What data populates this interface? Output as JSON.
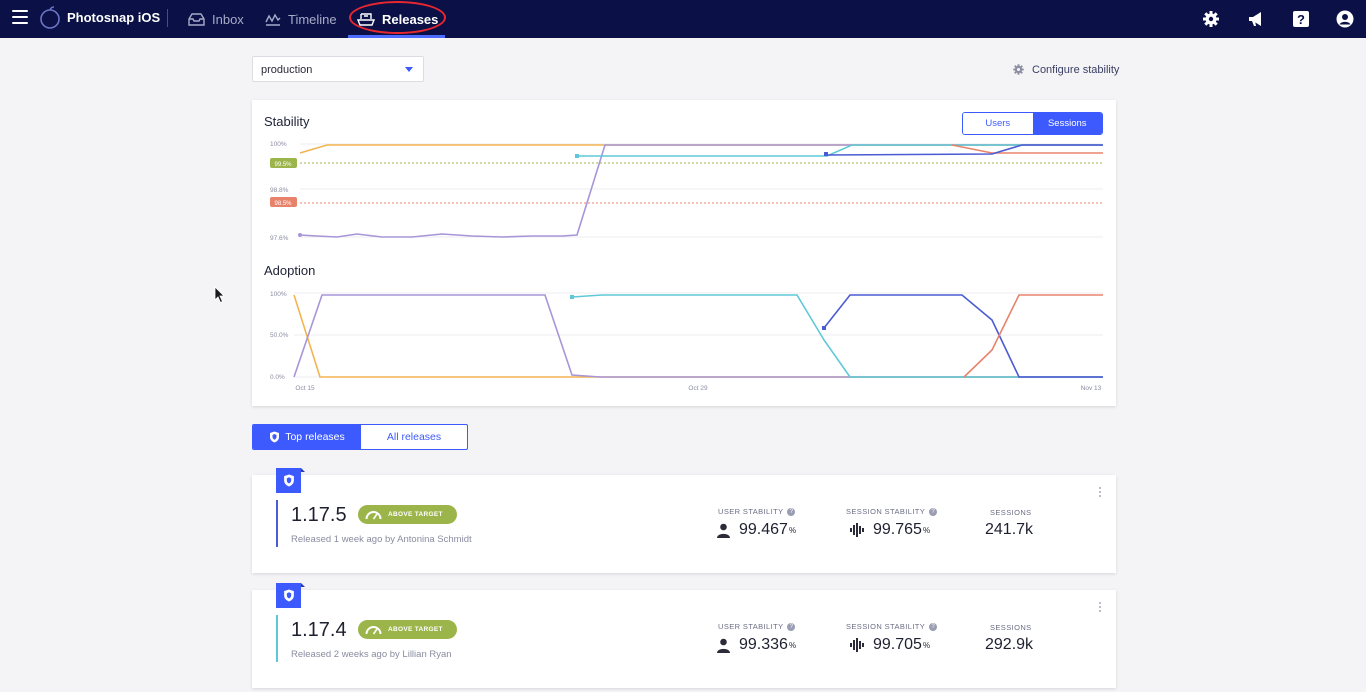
{
  "nav": {
    "app_name": "Photosnap iOS",
    "items": [
      {
        "label": "Inbox",
        "icon": "inbox-icon"
      },
      {
        "label": "Timeline",
        "icon": "timeline-icon"
      },
      {
        "label": "Releases",
        "icon": "ship-icon",
        "active": true
      }
    ],
    "right_icons": [
      "gear-icon",
      "megaphone-icon",
      "help-icon",
      "account-icon"
    ]
  },
  "filters": {
    "environment": "production",
    "configure_label": "Configure stability"
  },
  "stability_chart": {
    "title": "Stability",
    "toggle": [
      "Users",
      "Sessions"
    ],
    "toggle_active": "Sessions",
    "y_ticks": [
      "100%",
      "98.8%",
      "97.6%"
    ],
    "thresholds": [
      {
        "label": "99.5%",
        "color": "#9cb54a"
      },
      {
        "label": "98.5%",
        "color": "#e8836b"
      }
    ]
  },
  "adoption_chart": {
    "title": "Adoption",
    "y_ticks": [
      "100%",
      "50.0%",
      "0.0%"
    ],
    "x_ticks": [
      "Oct 15",
      "Oct 29",
      "Nov 13"
    ]
  },
  "release_tabs": {
    "top_label": "Top releases",
    "all_label": "All releases",
    "active": "Top releases"
  },
  "stat_labels": {
    "user_stability": "USER STABILITY",
    "session_stability": "SESSION STABILITY",
    "sessions": "SESSIONS"
  },
  "releases": [
    {
      "version": "1.17.5",
      "badge": "ABOVE TARGET",
      "meta": "Released 1 week ago by Antonina Schmidt",
      "user_stability": "99.467",
      "session_stability": "99.765",
      "sessions": "241.7k",
      "color": "#4a5bd4"
    },
    {
      "version": "1.17.4",
      "badge": "ABOVE TARGET",
      "meta": "Released 2 weeks ago by Lillian Ryan",
      "user_stability": "99.336",
      "session_stability": "99.705",
      "sessions": "292.9k",
      "color": "#5ec8d8"
    }
  ],
  "unit": "%"
}
